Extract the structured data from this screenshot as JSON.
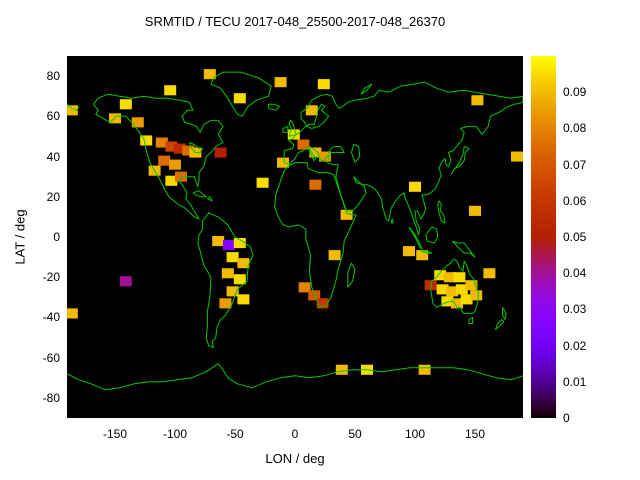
{
  "chart_data": {
    "type": "heatmap",
    "title": "SRMTID / TECU 2017-048_25500-2017-048_26370",
    "xlabel": "LON / deg",
    "ylabel": "LAT / deg",
    "xlim": [
      -190,
      190
    ],
    "ylim": [
      -90,
      90
    ],
    "xticks": [
      -150,
      -100,
      -50,
      0,
      50,
      100,
      150
    ],
    "yticks": [
      -80,
      -60,
      -40,
      -20,
      0,
      20,
      40,
      60,
      80
    ],
    "grid": false,
    "plot_background": "#000000",
    "coastline_color": "#00c800",
    "colorbar": {
      "min": 0,
      "max": 0.1,
      "ticks": [
        0,
        0.01,
        0.02,
        0.03,
        0.04,
        0.05,
        0.06,
        0.07,
        0.08,
        0.09
      ],
      "palette": "gnuplot black-purple-magenta-red-orange-yellow",
      "position": "right"
    },
    "cell_size_deg": {
      "lon": 10,
      "lat": 5
    },
    "points_format": [
      "lon",
      "lat",
      "value"
    ],
    "points": [
      [
        -186,
        63,
        0.09
      ],
      [
        -150,
        59,
        0.09
      ],
      [
        -141,
        66,
        0.095
      ],
      [
        -131,
        57,
        0.085
      ],
      [
        -104,
        73,
        0.095
      ],
      [
        -71,
        81,
        0.09
      ],
      [
        -46,
        69,
        0.095
      ],
      [
        -12,
        77,
        0.09
      ],
      [
        24,
        76,
        0.095
      ],
      [
        14,
        63,
        0.09
      ],
      [
        152,
        68,
        0.09
      ],
      [
        -124,
        48,
        0.095
      ],
      [
        -111,
        47,
        0.08
      ],
      [
        -103,
        45,
        0.065
      ],
      [
        -96,
        44,
        0.055
      ],
      [
        -89,
        43,
        0.075
      ],
      [
        -83,
        42,
        0.09
      ],
      [
        -109,
        38,
        0.075
      ],
      [
        -100,
        36,
        0.085
      ],
      [
        -117,
        33,
        0.09
      ],
      [
        -103,
        28,
        0.095
      ],
      [
        -95,
        30,
        0.075
      ],
      [
        -62,
        42,
        0.05
      ],
      [
        -1,
        51,
        0.095
      ],
      [
        7,
        46,
        0.075
      ],
      [
        17,
        42,
        0.09
      ],
      [
        25,
        40,
        0.085
      ],
      [
        -10,
        37,
        0.09
      ],
      [
        -27,
        27,
        0.095
      ],
      [
        17,
        26,
        0.075
      ],
      [
        -64,
        -2,
        0.09
      ],
      [
        -55,
        -4,
        0.025
      ],
      [
        -46,
        -3,
        0.095
      ],
      [
        -52,
        -10,
        0.095
      ],
      [
        -43,
        -13,
        0.09
      ],
      [
        -56,
        -18,
        0.09
      ],
      [
        -46,
        -21,
        0.095
      ],
      [
        -52,
        -27,
        0.09
      ],
      [
        -43,
        -31,
        0.095
      ],
      [
        -58,
        -33,
        0.085
      ],
      [
        -141,
        -22,
        0.04
      ],
      [
        -186,
        -38,
        0.09
      ],
      [
        8,
        -25,
        0.08
      ],
      [
        16,
        -29,
        0.07
      ],
      [
        23,
        -33,
        0.06
      ],
      [
        33,
        -9,
        0.09
      ],
      [
        43,
        11,
        0.09
      ],
      [
        100,
        25,
        0.095
      ],
      [
        95,
        -7,
        0.09
      ],
      [
        106,
        -9,
        0.09
      ],
      [
        150,
        13,
        0.09
      ],
      [
        113,
        -24,
        0.055
      ],
      [
        121,
        -19,
        0.095
      ],
      [
        129,
        -20,
        0.09
      ],
      [
        137,
        -20,
        0.095
      ],
      [
        123,
        -26,
        0.095
      ],
      [
        131,
        -27,
        0.09
      ],
      [
        139,
        -26,
        0.095
      ],
      [
        147,
        -24,
        0.09
      ],
      [
        127,
        -32,
        0.095
      ],
      [
        135,
        -33,
        0.09
      ],
      [
        143,
        -31,
        0.095
      ],
      [
        151,
        -29,
        0.09
      ],
      [
        162,
        -18,
        0.09
      ],
      [
        185,
        40,
        0.09
      ],
      [
        39,
        -66,
        0.09
      ],
      [
        60,
        -66,
        0.095
      ],
      [
        108,
        -66,
        0.09
      ]
    ]
  }
}
